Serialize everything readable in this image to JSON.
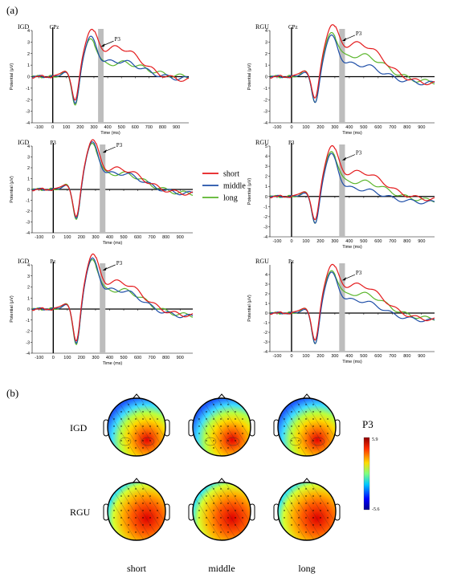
{
  "panel_a_label": "(a)",
  "panel_b_label": "(b)",
  "legend": {
    "entries": [
      {
        "label": "short",
        "color": "#e41a1c"
      },
      {
        "label": "middle",
        "color": "#1f4fa8"
      },
      {
        "label": "long",
        "color": "#5ab52b"
      }
    ]
  },
  "erp_common": {
    "p3_label": "P3",
    "ylabel": "Potential (μV)",
    "xlabel": "Time (ms)",
    "x_ticks": [
      -100,
      0,
      100,
      200,
      300,
      400,
      500,
      600,
      700,
      800,
      900
    ],
    "xlim": [
      -150,
      990
    ],
    "p3_window_ms": [
      330,
      370
    ]
  },
  "chart_data": [
    {
      "type": "line",
      "group": "IGD",
      "channel": "CPz",
      "xlabel": "Time (ms)",
      "ylim": [
        -4,
        4
      ],
      "y_ticks": [
        -4,
        -3,
        -2,
        -1,
        0,
        1,
        2,
        3,
        4
      ],
      "p3_y": 2.6,
      "profile": "igd_cpz"
    },
    {
      "type": "line",
      "group": "RGU",
      "channel": "CPz",
      "xlabel": "Time (ms)",
      "ylim": [
        -4,
        4
      ],
      "y_ticks": [
        -4,
        -3,
        -2,
        -1,
        0,
        1,
        2,
        3,
        4
      ],
      "p3_y": 3.1,
      "profile": "rgu_cpz"
    },
    {
      "type": "line",
      "group": "IGD",
      "channel": "P3",
      "xlabel": "Time (ms)",
      "ylim": [
        -4,
        4
      ],
      "y_ticks": [
        -4,
        -3,
        -2,
        -1,
        0,
        1,
        2,
        3,
        4
      ],
      "p3_y": 3.4,
      "profile": "igd_p3"
    },
    {
      "type": "line",
      "group": "RGU",
      "channel": "P3",
      "xlabel": "Time (ms)",
      "ylim": [
        -4,
        5
      ],
      "y_ticks": [
        -4,
        -3,
        -2,
        -1,
        0,
        1,
        2,
        3,
        4,
        5
      ],
      "p3_y": 3.6,
      "profile": "rgu_p3"
    },
    {
      "type": "line",
      "group": "IGD",
      "channel": "Pz",
      "xlabel": "Time (ms)",
      "ylim": [
        -4,
        4
      ],
      "y_ticks": [
        -4,
        -3,
        -2,
        -1,
        0,
        1,
        2,
        3,
        4
      ],
      "p3_y": 3.5,
      "profile": "igd_pz"
    },
    {
      "type": "line",
      "group": "RGU",
      "channel": "Pz",
      "xlabel": "Time (ms)",
      "ylim": [
        -4,
        5
      ],
      "y_ticks": [
        -4,
        -3,
        -2,
        -1,
        0,
        1,
        2,
        3,
        4
      ],
      "p3_y": 3.4,
      "profile": "rgu_pz"
    }
  ],
  "topo": {
    "title": "P3",
    "colorbar_max": "5.9",
    "colorbar_min": "-5.6",
    "groups": [
      "IGD",
      "RGU"
    ],
    "conditions": [
      "short",
      "middle",
      "long"
    ]
  }
}
